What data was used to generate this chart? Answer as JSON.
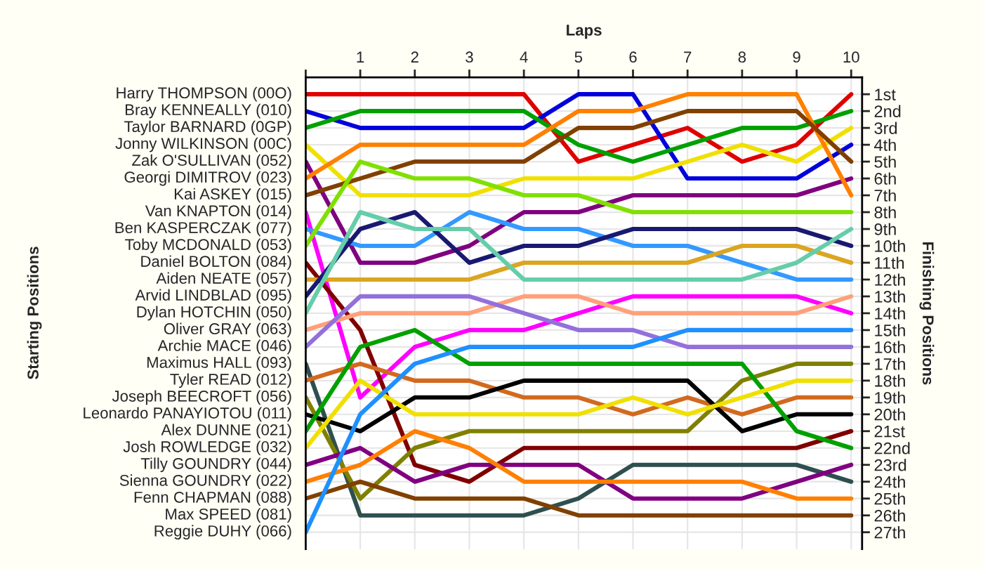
{
  "chart_data": {
    "type": "line",
    "xlabel": "Laps",
    "ylabel": "Finishing Positions",
    "annotations": [
      "Starting Positions",
      {
        "text": "Max SPEED (081)",
        "x": 0,
        "y": 26
      }
    ],
    "legend": "left",
    "x": [
      0,
      1,
      2,
      3,
      4,
      5,
      6,
      7,
      8,
      9,
      10
    ],
    "xlim": [
      0,
      10.2
    ],
    "xticks": [
      {
        "value": 0,
        "label": null
      },
      1,
      2,
      3,
      4,
      5,
      6,
      7,
      8,
      9,
      10
    ],
    "ylim": [
      28,
      0
    ],
    "yticks": [
      {
        "value": 1,
        "label": "1st"
      },
      {
        "value": 2,
        "label": "2nd"
      },
      {
        "value": 3,
        "label": "3rd"
      },
      {
        "value": 4,
        "label": "4th"
      },
      {
        "value": 5,
        "label": "5th"
      },
      {
        "value": 6,
        "label": "6th"
      },
      {
        "value": 7,
        "label": "7th"
      },
      {
        "value": 8,
        "label": "8th"
      },
      {
        "value": 9,
        "label": "9th"
      },
      {
        "value": 10,
        "label": "10th"
      },
      {
        "value": 11,
        "label": "11th"
      },
      {
        "value": 12,
        "label": "12th"
      },
      {
        "value": 13,
        "label": "13th"
      },
      {
        "value": 14,
        "label": "14th"
      },
      {
        "value": 15,
        "label": "15th"
      },
      {
        "value": 16,
        "label": "16th"
      },
      {
        "value": 17,
        "label": "17th"
      },
      {
        "value": 18,
        "label": "18th"
      },
      {
        "value": 19,
        "label": "19th"
      },
      {
        "value": 20,
        "label": "20th"
      },
      {
        "value": 21,
        "label": "21st"
      },
      {
        "value": 22,
        "label": "22nd"
      },
      {
        "value": 23,
        "label": "23rd"
      },
      {
        "value": 24,
        "label": "24th"
      },
      {
        "value": 25,
        "label": "25th"
      },
      {
        "value": 26,
        "label": "26th"
      },
      {
        "value": 27,
        "label": "27th"
      }
    ],
    "grid": true,
    "series": [
      {
        "name": "Harry THOMPSON (00O)",
        "color": "#e00000",
        "values": [
          1,
          1,
          1,
          1,
          1,
          5,
          4,
          3,
          5,
          4,
          1
        ]
      },
      {
        "name": "Bray KENNEALLY (010)",
        "color": "#0000dd",
        "values": [
          2,
          3,
          3,
          3,
          3,
          1,
          1,
          6,
          6,
          6,
          4
        ]
      },
      {
        "name": "Taylor BARNARD (0GP)",
        "color": "#00a000",
        "values": [
          3,
          2,
          2,
          2,
          2,
          4,
          5,
          4,
          3,
          3,
          2
        ]
      },
      {
        "name": "Jonny WILKINSON (00C)",
        "color": "#f0e000",
        "values": [
          4,
          7,
          7,
          7,
          6,
          6,
          6,
          5,
          4,
          5,
          3
        ]
      },
      {
        "name": "Zak O'SULLIVAN (052)",
        "color": "#800080",
        "values": [
          5,
          11,
          11,
          10,
          8,
          8,
          7,
          7,
          7,
          7,
          6
        ]
      },
      {
        "name": "Georgi DIMITROV (023)",
        "color": "#ff8000",
        "values": [
          6,
          4,
          4,
          4,
          4,
          2,
          2,
          1,
          1,
          1,
          7
        ]
      },
      {
        "name": "Kai ASKEY (015)",
        "color": "#804000",
        "values": [
          7,
          6,
          5,
          5,
          5,
          3,
          3,
          2,
          2,
          2,
          5
        ]
      },
      {
        "name": "Van KNAPTON (014)",
        "color": "#ff00ff",
        "values": [
          8,
          19,
          16,
          15,
          15,
          14,
          13,
          13,
          13,
          13,
          14
        ]
      },
      {
        "name": "Ben KASPERCZAK (077)",
        "color": "#3399ff",
        "values": [
          9,
          10,
          10,
          8,
          9,
          9,
          10,
          10,
          11,
          12,
          12
        ]
      },
      {
        "name": "Toby MCDONALD (053)",
        "color": "#80e000",
        "values": [
          10,
          5,
          6,
          6,
          7,
          7,
          8,
          8,
          8,
          8,
          8
        ]
      },
      {
        "name": "Daniel BOLTON (084)",
        "color": "#800000",
        "values": [
          11,
          15,
          23,
          24,
          22,
          22,
          22,
          22,
          22,
          22,
          21
        ]
      },
      {
        "name": "Aiden NEATE (057)",
        "color": "#daa520",
        "values": [
          12,
          12,
          12,
          12,
          11,
          11,
          11,
          11,
          10,
          10,
          11
        ]
      },
      {
        "name": "Arvid LINDBLAD (095)",
        "color": "#191970",
        "values": [
          13,
          9,
          8,
          11,
          10,
          10,
          9,
          9,
          9,
          9,
          10
        ]
      },
      {
        "name": "Dylan HOTCHIN (050)",
        "color": "#66cdaa",
        "values": [
          14,
          8,
          9,
          9,
          12,
          12,
          12,
          12,
          12,
          11,
          9
        ]
      },
      {
        "name": "Oliver GRAY (063)",
        "color": "#ffa07a",
        "values": [
          15,
          14,
          14,
          14,
          13,
          13,
          14,
          14,
          14,
          14,
          13
        ]
      },
      {
        "name": "Archie MACE (046)",
        "color": "#9370db",
        "values": [
          16,
          13,
          13,
          13,
          14,
          15,
          15,
          16,
          16,
          16,
          16
        ]
      },
      {
        "name": "Maximus HALL (093)",
        "color": "#2f4f4f",
        "values": [
          17,
          26,
          26,
          26,
          26,
          25,
          23,
          23,
          23,
          23,
          24
        ]
      },
      {
        "name": "Tyler READ (012)",
        "color": "#d2691e",
        "values": [
          18,
          17,
          18,
          18,
          19,
          19,
          20,
          19,
          20,
          19,
          19
        ]
      },
      {
        "name": "Joseph BEECROFT (056)",
        "color": "#808000",
        "values": [
          19,
          25,
          22,
          21,
          21,
          21,
          21,
          21,
          18,
          17,
          17
        ]
      },
      {
        "name": "Leonardo PANAYIOTOU (011)",
        "color": "#000000",
        "values": [
          20,
          21,
          19,
          19,
          18,
          18,
          18,
          18,
          21,
          20,
          20
        ]
      },
      {
        "name": "Alex DUNNE (021)",
        "color": "#00a000",
        "values": [
          21,
          16,
          15,
          17,
          17,
          17,
          17,
          17,
          17,
          21,
          22
        ]
      },
      {
        "name": "Josh ROWLEDGE (032)",
        "color": "#f0e000",
        "values": [
          22,
          18,
          20,
          20,
          20,
          20,
          19,
          20,
          19,
          18,
          18
        ]
      },
      {
        "name": "Tilly GOUNDRY (044)",
        "color": "#800080",
        "values": [
          23,
          22,
          24,
          23,
          23,
          23,
          25,
          25,
          25,
          24,
          23
        ]
      },
      {
        "name": "Sienna GOUNDRY (022)",
        "color": "#ff8000",
        "values": [
          24,
          23,
          21,
          22,
          24,
          24,
          24,
          24,
          24,
          25,
          25
        ]
      },
      {
        "name": "Fenn CHAPMAN (088)",
        "color": "#804000",
        "values": [
          25,
          24,
          25,
          25,
          25,
          26,
          26,
          26,
          26,
          26,
          26
        ]
      },
      {
        "name": "Reggie DUHY (066)",
        "color": "#1e90ff",
        "values": [
          27,
          20,
          17,
          16,
          16,
          16,
          16,
          15,
          15,
          15,
          15
        ]
      }
    ]
  }
}
